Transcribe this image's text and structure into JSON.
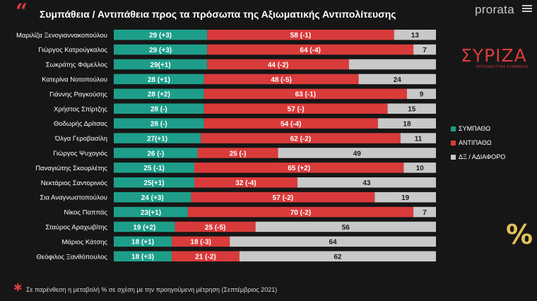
{
  "header": {
    "title": "Συμπάθεια / Αντιπάθεια προς τα πρόσωπα της Αξιωματικής Αντιπολίτευσης",
    "brand": "prorata",
    "party_logo_text": "ΣΥΡΙΖΑ",
    "party_logo_subtitle": "ΠΡΟΟΔΕΥΤΙΚΗ ΣΥΜΜΑΧΙΑ"
  },
  "legend": {
    "items": [
      {
        "label": "ΣΥΜΠΑΘΩ",
        "color": "#1e9e8a"
      },
      {
        "label": "ΑΝΤΙΠΑΘΩ",
        "color": "#d93b3b"
      },
      {
        "label": "ΔΞ / ΑΔΙΑΦΟΡΟ",
        "color": "#c8c8c8"
      }
    ]
  },
  "footnote": "Σε παρένθεση η μεταβολή % σε σχέση με την προηγούμενη μέτρηση (Σεπτέμβριος 2021)",
  "colors": {
    "sympatho": "#1e9e8a",
    "antipatho": "#d93b3b",
    "dx": "#c8c8c8",
    "accent": "#d93b3b",
    "percent_icon": "#e3c15a"
  },
  "icons": {
    "percent": "%"
  },
  "chart_data": {
    "type": "bar",
    "stacked": true,
    "orientation": "horizontal",
    "categories": [
      "Μαριλίζα Ξενογιαννακοπούλου",
      "Γιώργος Κατρούγκαλος",
      "Σωκράτης Φάμελλος",
      "Κατερίνα Νοτοπούλου",
      "Γιάννης Ραγκούσης",
      "Χρήστος Σπίρτζης",
      "Θοδωρής Δρίτσας",
      "Όλγα Γεροβασίλη",
      "Γιώργος Ψυχογιός",
      "Παναγιώτης Σκουρλέτης",
      "Νεκτάριος Σαντορινιός",
      "Σια Αναγνωστοπούλου",
      "Νίκος Παππάς",
      "Σταύρος Αραχωβίτης",
      "Μάριος Κάτσης",
      "Θεόφιλος Ξανθόπουλος"
    ],
    "series": [
      {
        "name": "ΣΥΜΠΑΘΩ",
        "values": [
          29,
          29,
          29,
          28,
          28,
          28,
          28,
          27,
          26,
          25,
          25,
          24,
          23,
          19,
          18,
          18
        ]
      },
      {
        "name": "ΑΝΤΙΠΑΘΩ",
        "values": [
          58,
          64,
          44,
          48,
          63,
          57,
          54,
          62,
          25,
          65,
          32,
          57,
          70,
          25,
          18,
          21
        ]
      },
      {
        "name": "ΔΞ / ΑΔΙΑΦΟΡΟ",
        "values": [
          13,
          7,
          null,
          24,
          9,
          15,
          18,
          11,
          49,
          10,
          43,
          19,
          7,
          56,
          64,
          62
        ]
      }
    ],
    "labels": [
      [
        "29 (+3)",
        "58 (-1)",
        "13"
      ],
      [
        "29 (+3)",
        "64 (-4)",
        "7"
      ],
      [
        "29(+1)",
        "44 (-2)",
        ""
      ],
      [
        "28 (+1)",
        "48 (-5)",
        "24"
      ],
      [
        "28 (+2)",
        "63 (-1)",
        "9"
      ],
      [
        "28 (-)",
        "57 (-)",
        "15"
      ],
      [
        "28 (-)",
        "54 (-4)",
        "18"
      ],
      [
        "27(+1)",
        "62 (-2)",
        "11"
      ],
      [
        "26 (-)",
        "25 (-)",
        "49"
      ],
      [
        "25 (-1)",
        "65 (+2)",
        "10"
      ],
      [
        "25(+1)",
        "32 (-4)",
        "43"
      ],
      [
        "24 (+3)",
        "57 (-2)",
        "19"
      ],
      [
        "23(+1)",
        "70 (-2)",
        "7"
      ],
      [
        "19 (+2)",
        "25 (-5)",
        "56"
      ],
      [
        "18 (+1)",
        "18 (-3)",
        "64"
      ],
      [
        "18 (+3)",
        "21 (-2)",
        "62"
      ]
    ],
    "xlim": [
      0,
      100
    ],
    "grid": false,
    "legend_position": "right"
  }
}
